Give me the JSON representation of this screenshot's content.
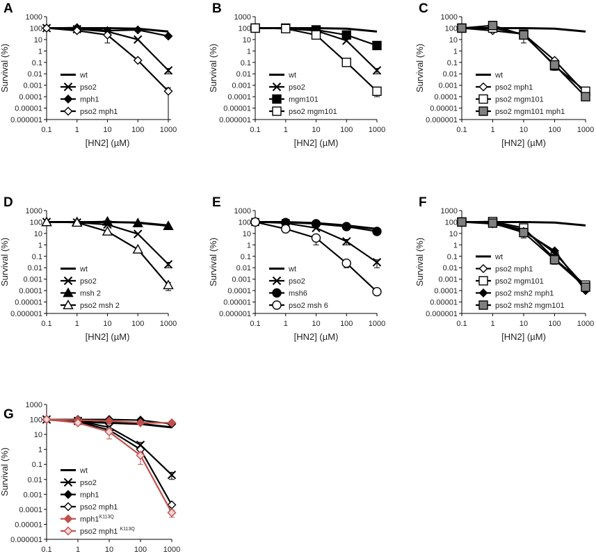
{
  "figure": {
    "panel_letters": [
      "A",
      "B",
      "C",
      "D",
      "E",
      "F",
      "G"
    ]
  },
  "colors": {
    "black": "#000000",
    "gray_fill": "#808080",
    "k113q_line": "#c0504d",
    "k113q_fill": "#e8a8a8"
  },
  "chart_data": [
    {
      "panel": "A",
      "type": "line",
      "x": [
        0.1,
        1,
        10,
        100,
        1000
      ],
      "xlabel": "[HN2] (µM)",
      "ylabel": "Survival (%)",
      "x_ticks": [
        "0.1",
        "1",
        "10",
        "100",
        "1000"
      ],
      "y_ticks": [
        "1000",
        "100",
        "10",
        "1",
        "0.1",
        "0.01",
        "0.001",
        "0.0001",
        "0.00001",
        "0.000001"
      ],
      "xscale": "log",
      "yscale": "log",
      "xlim": [
        0.1,
        1000
      ],
      "ylim": [
        1e-06,
        1000
      ],
      "legend_position": "bottom-left",
      "series": [
        {
          "name": "wt",
          "marker": "none",
          "color": "#000000",
          "values": [
            100,
            100,
            100,
            90,
            50
          ]
        },
        {
          "name": "pso2",
          "marker": "x",
          "color": "#000000",
          "values": [
            100,
            80,
            50,
            10,
            0.02
          ],
          "errors": [
            0,
            0,
            0,
            0,
            0.01
          ]
        },
        {
          "name": "mph1",
          "marker": "diamond-filled",
          "color": "#000000",
          "values": [
            100,
            110,
            60,
            70,
            20
          ]
        },
        {
          "name": "pso2 mph1",
          "marker": "diamond-open",
          "color": "#000000",
          "values": [
            100,
            60,
            25,
            0.15,
            0.0003
          ],
          "errors": [
            0,
            0,
            20,
            0,
            0.0003
          ]
        }
      ]
    },
    {
      "panel": "B",
      "type": "line",
      "x": [
        0.1,
        1,
        10,
        100,
        1000
      ],
      "xlabel": "[HN2] (µM)",
      "ylabel": "Survival (%)",
      "x_ticks": [
        "0.1",
        "1",
        "10",
        "100",
        "1000"
      ],
      "y_ticks": [
        "1000",
        "100",
        "10",
        "1",
        "0.1",
        "0.01",
        "0.001",
        "0.0001",
        "0.00001",
        "0.000001"
      ],
      "xscale": "log",
      "yscale": "log",
      "xlim": [
        0.1,
        1000
      ],
      "ylim": [
        1e-06,
        1000
      ],
      "legend_position": "bottom-left",
      "series": [
        {
          "name": "wt",
          "marker": "none",
          "color": "#000000",
          "values": [
            100,
            100,
            100,
            90,
            50
          ]
        },
        {
          "name": "pso2",
          "marker": "x",
          "color": "#000000",
          "values": [
            100,
            90,
            60,
            8,
            0.02
          ],
          "errors": [
            0,
            0,
            0,
            0,
            0.01
          ]
        },
        {
          "name": "mgm101",
          "marker": "square-filled",
          "color": "#000000",
          "values": [
            100,
            100,
            70,
            25,
            3
          ]
        },
        {
          "name": "pso2 mgm101",
          "marker": "square-open",
          "color": "#000000",
          "values": [
            100,
            90,
            25,
            0.1,
            0.0003
          ],
          "errors": [
            0,
            0,
            0,
            0,
            0.0002
          ]
        }
      ]
    },
    {
      "panel": "C",
      "type": "line",
      "x": [
        0.1,
        1,
        10,
        100,
        1000
      ],
      "xlabel": "[HN2] (µM)",
      "ylabel": "Survival (%)",
      "x_ticks": [
        "0.1",
        "1",
        "10",
        "100",
        "1000"
      ],
      "y_ticks": [
        "1000",
        "100",
        "10",
        "1",
        "0.1",
        "0.01",
        "0.001",
        "0.0001",
        "0.00001",
        "0.000001"
      ],
      "xscale": "log",
      "yscale": "log",
      "xlim": [
        0.1,
        1000
      ],
      "ylim": [
        1e-06,
        1000
      ],
      "legend_position": "bottom-left",
      "series": [
        {
          "name": "wt",
          "marker": "none",
          "color": "#000000",
          "values": [
            100,
            100,
            100,
            90,
            50
          ]
        },
        {
          "name": "pso2 mph1",
          "marker": "diamond-open",
          "color": "#000000",
          "values": [
            100,
            60,
            30,
            0.15,
            0.0002
          ]
        },
        {
          "name": "pso2 mgm101",
          "marker": "square-open",
          "color": "#000000",
          "values": [
            100,
            100,
            30,
            0.05,
            0.0003
          ]
        },
        {
          "name": "pso2 mgm101 mph1",
          "marker": "square-gray",
          "color": "#000000",
          "values": [
            100,
            170,
            25,
            0.06,
            0.0001
          ],
          "errors": [
            0,
            0,
            20,
            0.04,
            0
          ]
        }
      ]
    },
    {
      "panel": "D",
      "type": "line",
      "x": [
        0.1,
        1,
        10,
        100,
        1000
      ],
      "xlabel": "[HN2] (µM)",
      "ylabel": "Survival (%)",
      "x_ticks": [
        "0.1",
        "1",
        "10",
        "100",
        "1000"
      ],
      "y_ticks": [
        "1000",
        "100",
        "10",
        "1",
        "0.1",
        "0.01",
        "0.001",
        "0.0001",
        "0.00001",
        "0.000001"
      ],
      "xscale": "log",
      "yscale": "log",
      "xlim": [
        0.1,
        1000
      ],
      "ylim": [
        1e-06,
        1000
      ],
      "legend_position": "bottom-left",
      "series": [
        {
          "name": "wt",
          "marker": "none",
          "color": "#000000",
          "values": [
            100,
            100,
            100,
            90,
            50
          ]
        },
        {
          "name": "pso2",
          "marker": "x",
          "color": "#000000",
          "values": [
            100,
            90,
            60,
            9,
            0.02
          ],
          "errors": [
            0,
            0,
            0,
            0,
            0.01
          ]
        },
        {
          "name": "msh 2",
          "marker": "triangle-filled",
          "color": "#000000",
          "values": [
            100,
            100,
            110,
            80,
            45
          ]
        },
        {
          "name": "pso2 msh 2",
          "marker": "triangle-open",
          "color": "#000000",
          "values": [
            100,
            90,
            15,
            0.4,
            0.0003
          ],
          "errors": [
            0,
            0,
            0,
            0,
            0.0002
          ]
        }
      ]
    },
    {
      "panel": "E",
      "type": "line",
      "x": [
        0.1,
        1,
        10,
        100,
        1000
      ],
      "xlabel": "[HN2] (µM)",
      "ylabel": "Survival (%)",
      "x_ticks": [
        "0.1",
        "1",
        "10",
        "100",
        "1000"
      ],
      "y_ticks": [
        "1000",
        "100",
        "10",
        "1",
        "0.1",
        "0.01",
        "0.001",
        "0.0001",
        "0.00001",
        "0.000001"
      ],
      "xscale": "log",
      "yscale": "log",
      "xlim": [
        0.1,
        1000
      ],
      "ylim": [
        1e-06,
        1000
      ],
      "legend_position": "bottom-left",
      "series": [
        {
          "name": "wt",
          "marker": "none",
          "color": "#000000",
          "values": [
            100,
            100,
            80,
            50,
            25
          ]
        },
        {
          "name": "pso2",
          "marker": "x",
          "color": "#000000",
          "values": [
            100,
            80,
            30,
            2,
            0.03
          ],
          "errors": [
            0,
            0,
            0,
            1,
            0.02
          ]
        },
        {
          "name": "msh6",
          "marker": "circle-filled",
          "color": "#000000",
          "values": [
            100,
            90,
            70,
            40,
            15
          ]
        },
        {
          "name": "pso2 msh 6",
          "marker": "circle-open",
          "color": "#000000",
          "values": [
            100,
            25,
            4,
            0.025,
            8e-05
          ],
          "errors": [
            0,
            0,
            3,
            0.015,
            0
          ]
        }
      ]
    },
    {
      "panel": "F",
      "type": "line",
      "x": [
        0.1,
        1,
        10,
        100,
        1000
      ],
      "xlabel": "[HN2] (µM)",
      "ylabel": "Survival (%)",
      "x_ticks": [
        "0.1",
        "1",
        "10",
        "100",
        "1000"
      ],
      "y_ticks": [
        "1000",
        "100",
        "10",
        "1",
        "0.1",
        "0.01",
        "0.001",
        "0.0001",
        "0.00001",
        "0.000001"
      ],
      "xscale": "log",
      "yscale": "log",
      "xlim": [
        0.1,
        1000
      ],
      "ylim": [
        1e-06,
        1000
      ],
      "legend_position": "bottom-left",
      "series": [
        {
          "name": "wt",
          "marker": "none",
          "color": "#000000",
          "values": [
            100,
            100,
            100,
            90,
            50
          ]
        },
        {
          "name": "pso2 mph1",
          "marker": "diamond-open",
          "color": "#000000",
          "values": [
            100,
            90,
            20,
            0.2,
            0.0002
          ]
        },
        {
          "name": "pso2 mgm101",
          "marker": "square-open",
          "color": "#000000",
          "values": [
            100,
            110,
            30,
            0.06,
            0.0003
          ]
        },
        {
          "name": "pso2 msh2 mph1",
          "marker": "diamond-filled",
          "color": "#000000",
          "values": [
            100,
            70,
            15,
            0.3,
            0.0001
          ]
        },
        {
          "name": "pso2 msh2 mgm101",
          "marker": "square-gray",
          "color": "#000000",
          "values": [
            100,
            80,
            12,
            0.05,
            0.0002
          ],
          "errors": [
            0,
            0,
            8,
            0.03,
            0.0001
          ]
        }
      ]
    },
    {
      "panel": "G",
      "type": "line",
      "x": [
        0.1,
        1,
        10,
        100,
        1000
      ],
      "xlabel": "[HN2] (µM)",
      "ylabel": "Survival (%)",
      "x_ticks": [
        "0.1",
        "1",
        "10",
        "100",
        "1000"
      ],
      "y_ticks": [
        "1000",
        "100",
        "10",
        "1",
        "0.1",
        "0.01",
        "0.001",
        "0.0001",
        "0.00001",
        "0.000001"
      ],
      "xscale": "log",
      "yscale": "log",
      "xlim": [
        0.1,
        1000
      ],
      "ylim": [
        1e-06,
        1000
      ],
      "legend_position": "bottom-left",
      "series": [
        {
          "name": "wt",
          "marker": "none",
          "color": "#000000",
          "values": [
            100,
            70,
            60,
            50,
            30
          ]
        },
        {
          "name": "pso2",
          "marker": "x",
          "color": "#000000",
          "values": [
            100,
            80,
            30,
            2,
            0.02
          ],
          "errors": [
            0,
            0,
            0,
            1,
            0.01
          ]
        },
        {
          "name": "mph1",
          "marker": "diamond-filled",
          "color": "#000000",
          "values": [
            100,
            100,
            100,
            90,
            50
          ]
        },
        {
          "name": "pso2 mph1",
          "marker": "diamond-open",
          "color": "#000000",
          "values": [
            100,
            70,
            20,
            1,
            0.0002
          ]
        },
        {
          "name": "mph1",
          "name_sup": "K113Q",
          "marker": "diamond-filled",
          "color": "#c0504d",
          "fill": "#c0504d",
          "values": [
            100,
            90,
            80,
            60,
            60
          ]
        },
        {
          "name": "pso2 mph1 ",
          "name_sup": "K113Q",
          "marker": "diamond-open",
          "color": "#c0504d",
          "fill": "#f4d6d6",
          "values": [
            100,
            60,
            15,
            0.4,
            6e-05
          ],
          "errors": [
            0,
            0,
            10,
            0.3,
            3e-05
          ]
        }
      ]
    }
  ]
}
